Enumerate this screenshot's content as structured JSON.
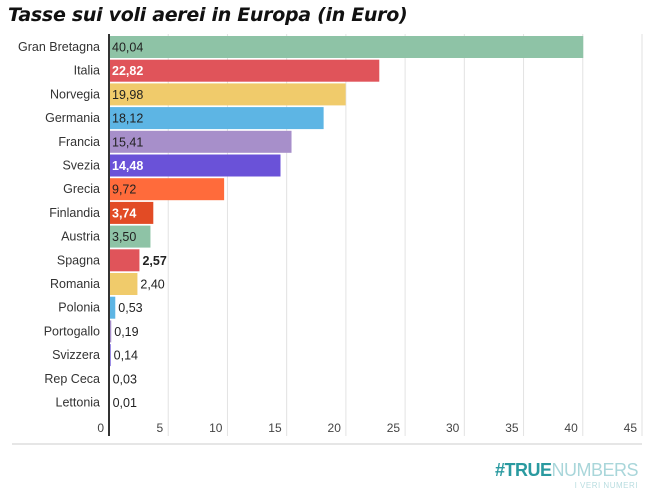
{
  "chart_data": {
    "type": "bar",
    "orientation": "horizontal",
    "title": "Tasse sui voli aerei in Europa (in Euro)",
    "categories": [
      "Gran Bretagna",
      "Italia",
      "Norvegia",
      "Germania",
      "Francia",
      "Svezia",
      "Grecia",
      "Finlandia",
      "Austria",
      "Spagna",
      "Romania",
      "Polonia",
      "Portogallo",
      "Svizzera",
      "Rep Ceca",
      "Lettonia"
    ],
    "values": [
      40.04,
      22.82,
      19.98,
      18.12,
      15.41,
      14.48,
      9.72,
      3.74,
      3.5,
      2.57,
      2.4,
      0.53,
      0.19,
      0.14,
      0.03,
      0.01
    ],
    "data_labels": [
      "40,04",
      "22,82",
      "19,98",
      "18,12",
      "15,41",
      "14,48",
      "9,72",
      "3,74",
      "3,50",
      "2,57",
      "2,40",
      "0,53",
      "0,19",
      "0,14",
      "0,03",
      "0,01"
    ],
    "colors": [
      "#8ec3a6",
      "#e0545a",
      "#f0cb6b",
      "#5db5e4",
      "#a78fca",
      "#6a52d8",
      "#ff6b3b",
      "#e24b25",
      "#8ec3a6",
      "#e0545a",
      "#f0cb6b",
      "#5db5e4",
      "#a78fca",
      "#6a52d8",
      "#ff6b3b",
      "#e24b25"
    ],
    "label_white": [
      false,
      true,
      false,
      false,
      false,
      true,
      false,
      true,
      false,
      true,
      false,
      false,
      false,
      false,
      false,
      false
    ],
    "xlim": [
      0,
      45
    ],
    "xticks": [
      0,
      5,
      10,
      15,
      20,
      25,
      30,
      35,
      40,
      45
    ],
    "grid": true,
    "xlabel": "",
    "ylabel": ""
  },
  "logo": {
    "part1": "#TRUE",
    "part2": "NUMBERS",
    "tagline": "I VERI NUMERI"
  }
}
